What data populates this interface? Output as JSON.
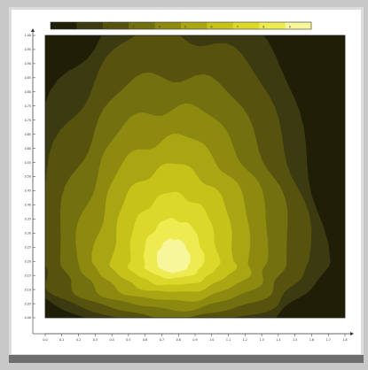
{
  "chart_data": {
    "type": "heatmap",
    "title": "",
    "xlabel": "",
    "ylabel": "",
    "colorbar": {
      "ticks": [
        "0",
        "1",
        "2",
        "3",
        "4",
        "5",
        "6",
        "7",
        "8",
        "9"
      ],
      "colors": [
        "#1f1f08",
        "#3c3a10",
        "#57530f",
        "#73700f",
        "#8e8a10",
        "#aaa512",
        "#c6c21a",
        "#dcd82a",
        "#eeeb50",
        "#f8f69a"
      ]
    },
    "x_ticks": [
      "0.0",
      "0.1",
      "0.2",
      "0.3",
      "0.4",
      "0.5",
      "0.6",
      "0.7",
      "0.8",
      "0.9",
      "1.0",
      "1.1",
      "1.2",
      "1.3",
      "1.4",
      "1.5",
      "1.6",
      "1.7",
      "1.8"
    ],
    "y_ticks": [
      "0.00",
      "0.05",
      "0.10",
      "0.15",
      "0.20",
      "0.25",
      "0.30",
      "0.35",
      "0.40",
      "0.45",
      "0.50",
      "0.55",
      "0.60",
      "0.65",
      "0.70",
      "0.75",
      "0.80",
      "0.85",
      "0.90",
      "0.95",
      "1.00"
    ],
    "xlim": [
      0,
      1.8
    ],
    "ylim": [
      0,
      1
    ],
    "peak": {
      "x": 0.77,
      "y": 0.2
    },
    "levels": [
      1,
      2,
      3,
      4,
      5,
      6,
      7,
      8,
      9
    ],
    "level_radii": [
      {
        "level": 1,
        "rx": 0.9,
        "ry_up": 0.95,
        "ry_down": 0.26
      },
      {
        "level": 2,
        "rx": 0.8,
        "ry_up": 0.82,
        "ry_down": 0.23
      },
      {
        "level": 3,
        "rx": 0.68,
        "ry_up": 0.67,
        "ry_down": 0.2
      },
      {
        "level": 4,
        "rx": 0.57,
        "ry_up": 0.55,
        "ry_down": 0.17
      },
      {
        "level": 5,
        "rx": 0.47,
        "ry_up": 0.44,
        "ry_down": 0.14
      },
      {
        "level": 6,
        "rx": 0.37,
        "ry_up": 0.34,
        "ry_down": 0.11
      },
      {
        "level": 7,
        "rx": 0.27,
        "ry_up": 0.24,
        "ry_down": 0.085
      },
      {
        "level": 8,
        "rx": 0.18,
        "ry_up": 0.15,
        "ry_down": 0.06
      },
      {
        "level": 9,
        "rx": 0.1,
        "ry_up": 0.08,
        "ry_down": 0.04
      }
    ]
  }
}
